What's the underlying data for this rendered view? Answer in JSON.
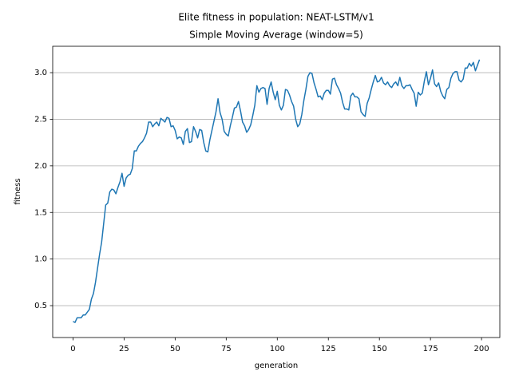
{
  "chart_data": {
    "type": "line",
    "title": "Elite fitness in population: NEAT-LSTM/v1",
    "subtitle": "Simple Moving Average (window=5)",
    "x_label": "generation",
    "y_label": "fitness",
    "color": "#1f77b4",
    "grid": "y",
    "xlim": [
      -9.95,
      208.95
    ],
    "ylim": [
      0.158,
      3.283
    ],
    "xticks": [
      0,
      25,
      50,
      75,
      100,
      125,
      150,
      175,
      200
    ],
    "yticks": [
      0.5,
      {
        "value": 1,
        "label": "1.0"
      },
      1.5,
      {
        "value": 2,
        "label": "2.0"
      },
      2.5,
      {
        "value": 3,
        "label": "3.0"
      }
    ],
    "x": [
      0,
      1,
      2,
      3,
      4,
      5,
      6,
      7,
      8,
      9,
      10,
      11,
      12,
      13,
      14,
      15,
      16,
      17,
      18,
      19,
      20,
      21,
      22,
      23,
      24,
      25,
      26,
      27,
      28,
      29,
      30,
      31,
      32,
      33,
      34,
      35,
      36,
      37,
      38,
      39,
      40,
      41,
      42,
      43,
      44,
      45,
      46,
      47,
      48,
      49,
      50,
      51,
      52,
      53,
      54,
      55,
      56,
      57,
      58,
      59,
      60,
      61,
      62,
      63,
      64,
      65,
      66,
      67,
      68,
      69,
      70,
      71,
      72,
      73,
      74,
      75,
      76,
      77,
      78,
      79,
      80,
      81,
      82,
      83,
      84,
      85,
      86,
      87,
      88,
      89,
      90,
      91,
      92,
      93,
      94,
      95,
      96,
      97,
      98,
      99,
      100,
      101,
      102,
      103,
      104,
      105,
      106,
      107,
      108,
      109,
      110,
      111,
      112,
      113,
      114,
      115,
      116,
      117,
      118,
      119,
      120,
      121,
      122,
      123,
      124,
      125,
      126,
      127,
      128,
      129,
      130,
      131,
      132,
      133,
      134,
      135,
      136,
      137,
      138,
      139,
      140,
      141,
      142,
      143,
      144,
      145,
      146,
      147,
      148,
      149,
      150,
      151,
      152,
      153,
      154,
      155,
      156,
      157,
      158,
      159,
      160,
      161,
      162,
      163,
      164,
      165,
      166,
      167,
      168,
      169,
      170,
      171,
      172,
      173,
      174,
      175,
      176,
      177,
      178,
      179,
      180,
      181,
      182,
      183,
      184,
      185,
      186,
      187,
      188,
      189,
      190,
      191,
      192,
      193,
      194,
      195,
      196,
      197,
      198,
      199
    ],
    "values": [
      0.33,
      0.32,
      0.37,
      0.37,
      0.37,
      0.4,
      0.4,
      0.43,
      0.46,
      0.57,
      0.63,
      0.75,
      0.9,
      1.05,
      1.18,
      1.38,
      1.58,
      1.6,
      1.72,
      1.75,
      1.74,
      1.7,
      1.77,
      1.83,
      1.92,
      1.78,
      1.87,
      1.9,
      1.91,
      1.97,
      2.16,
      2.16,
      2.21,
      2.24,
      2.26,
      2.3,
      2.35,
      2.47,
      2.47,
      2.42,
      2.45,
      2.47,
      2.43,
      2.51,
      2.49,
      2.47,
      2.52,
      2.51,
      2.42,
      2.43,
      2.38,
      2.29,
      2.31,
      2.3,
      2.23,
      2.37,
      2.4,
      2.25,
      2.26,
      2.42,
      2.37,
      2.3,
      2.39,
      2.38,
      2.25,
      2.16,
      2.15,
      2.28,
      2.38,
      2.48,
      2.58,
      2.72,
      2.57,
      2.5,
      2.37,
      2.34,
      2.32,
      2.43,
      2.52,
      2.62,
      2.63,
      2.69,
      2.59,
      2.47,
      2.43,
      2.36,
      2.39,
      2.44,
      2.54,
      2.65,
      2.86,
      2.79,
      2.83,
      2.84,
      2.83,
      2.66,
      2.83,
      2.9,
      2.79,
      2.71,
      2.8,
      2.65,
      2.6,
      2.65,
      2.82,
      2.81,
      2.76,
      2.69,
      2.64,
      2.5,
      2.42,
      2.45,
      2.55,
      2.7,
      2.82,
      2.96,
      3.0,
      2.99,
      2.89,
      2.82,
      2.74,
      2.75,
      2.71,
      2.78,
      2.81,
      2.81,
      2.77,
      2.93,
      2.94,
      2.87,
      2.83,
      2.78,
      2.68,
      2.61,
      2.61,
      2.6,
      2.75,
      2.78,
      2.74,
      2.74,
      2.72,
      2.58,
      2.55,
      2.53,
      2.67,
      2.73,
      2.82,
      2.9,
      2.97,
      2.9,
      2.91,
      2.95,
      2.89,
      2.87,
      2.9,
      2.86,
      2.84,
      2.88,
      2.9,
      2.86,
      2.95,
      2.86,
      2.83,
      2.86,
      2.86,
      2.87,
      2.82,
      2.78,
      2.64,
      2.79,
      2.76,
      2.78,
      2.91,
      3.01,
      2.87,
      2.94,
      3.03,
      2.88,
      2.85,
      2.89,
      2.8,
      2.75,
      2.72,
      2.82,
      2.84,
      2.94,
      2.99,
      3.01,
      3.01,
      2.92,
      2.9,
      2.93,
      3.05,
      3.05,
      3.1,
      3.07,
      3.11,
      3.02,
      3.08,
      3.14
    ]
  }
}
